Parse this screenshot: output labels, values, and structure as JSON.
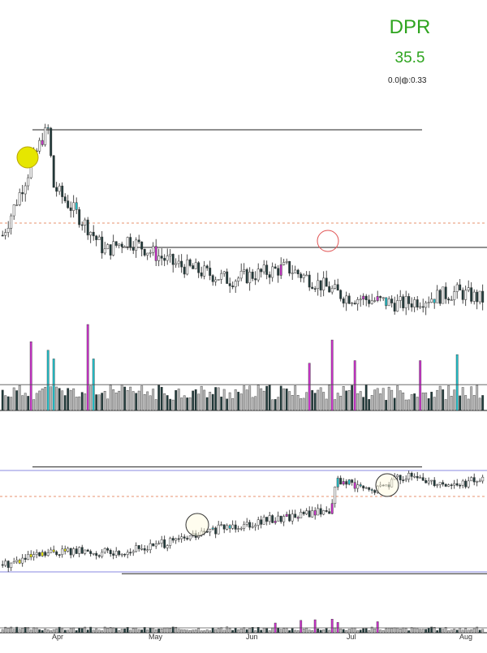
{
  "header": {
    "ticker": "DPR",
    "price": "35.5",
    "stats": "0.0|◍:0.33"
  },
  "chart_data": [
    {
      "type": "candlestick",
      "panel": "top-price",
      "title": "DPR",
      "seed": 7,
      "n": 170,
      "y_start": 36,
      "drift": [
        [
          0,
          36,
          14,
          84
        ],
        [
          14,
          84,
          16,
          88
        ],
        [
          16,
          88,
          18,
          60
        ],
        [
          18,
          60,
          30,
          40
        ],
        [
          30,
          40,
          36,
          28
        ],
        [
          36,
          28,
          44,
          34
        ],
        [
          44,
          34,
          60,
          22
        ],
        [
          60,
          22,
          80,
          14
        ],
        [
          80,
          14,
          100,
          20
        ],
        [
          100,
          20,
          120,
          6
        ],
        [
          120,
          6,
          140,
          2
        ],
        [
          140,
          2,
          160,
          8
        ],
        [
          160,
          8,
          170,
          4
        ]
      ],
      "highlight_bars": {
        "magenta": [
          14,
          54,
          98,
          127,
          132
        ],
        "cyan": [
          16,
          26,
          135,
          152
        ]
      },
      "resistance_line": 88,
      "support_line": 30,
      "ref_dashed": 42
    },
    {
      "type": "bar",
      "panel": "top-volume",
      "seed": 11,
      "n": 170,
      "spikes": {
        "10": 0.8,
        "16": 0.7,
        "18": 0.6,
        "30": 1.0,
        "32": 0.6,
        "108": 0.55,
        "116": 0.82,
        "124": 0.58,
        "147": 0.58,
        "160": 0.65
      },
      "spike_colors": {
        "10": "#cc33cc",
        "16": "#22c1cb",
        "18": "#22c1cb",
        "30": "#cc33cc",
        "32": "#22c1cb",
        "108": "#cc33cc",
        "116": "#cc33cc",
        "124": "#cc33cc",
        "147": "#cc33cc",
        "160": "#22c1cb"
      }
    },
    {
      "type": "candlestick",
      "panel": "bottom-price",
      "seed": 5,
      "n": 170,
      "y_start": 10,
      "drift": [
        [
          0,
          10,
          20,
          22
        ],
        [
          20,
          22,
          40,
          20
        ],
        [
          40,
          20,
          60,
          30
        ],
        [
          60,
          30,
          80,
          44
        ],
        [
          80,
          44,
          100,
          52
        ],
        [
          100,
          52,
          115,
          58
        ],
        [
          115,
          58,
          118,
          84
        ],
        [
          118,
          84,
          130,
          74
        ],
        [
          130,
          74,
          140,
          88
        ],
        [
          140,
          88,
          160,
          80
        ],
        [
          160,
          80,
          170,
          86
        ]
      ],
      "highlight_bars": {
        "magenta": [
          96,
          100,
          104,
          110,
          116,
          120,
          124
        ],
        "cyan": [
          74,
          80,
          118,
          122,
          126,
          130
        ],
        "yellow": [
          6,
          10,
          14,
          18,
          22
        ]
      },
      "resistance_line": 96,
      "support_line": 2,
      "ref_dashed": 70
    },
    {
      "type": "bar",
      "panel": "bottom-volume",
      "seed": 3,
      "n": 170,
      "spikes": {
        "96": 0.3,
        "105": 0.38,
        "110": 0.4,
        "116": 0.42,
        "118": 0.32,
        "132": 0.34
      },
      "spike_colors": {
        "96": "#cc33cc",
        "105": "#cc33cc",
        "110": "#cc33cc",
        "116": "#cc33cc",
        "118": "#cc33cc",
        "132": "#cc33cc"
      }
    }
  ],
  "x_axis": {
    "labels": [
      "Apr",
      "May",
      "Jun",
      "Jul",
      "Aug"
    ]
  },
  "colors": {
    "up": "#ffffff",
    "down": "#1f3a3a",
    "wick": "#222222",
    "magenta": "#cc33cc",
    "cyan": "#22c1cb",
    "yellow": "#e6e600",
    "vol_gray": "#bdbdbd",
    "ref_dashed": "#e07040",
    "blue_line": "#8a8ae0"
  }
}
